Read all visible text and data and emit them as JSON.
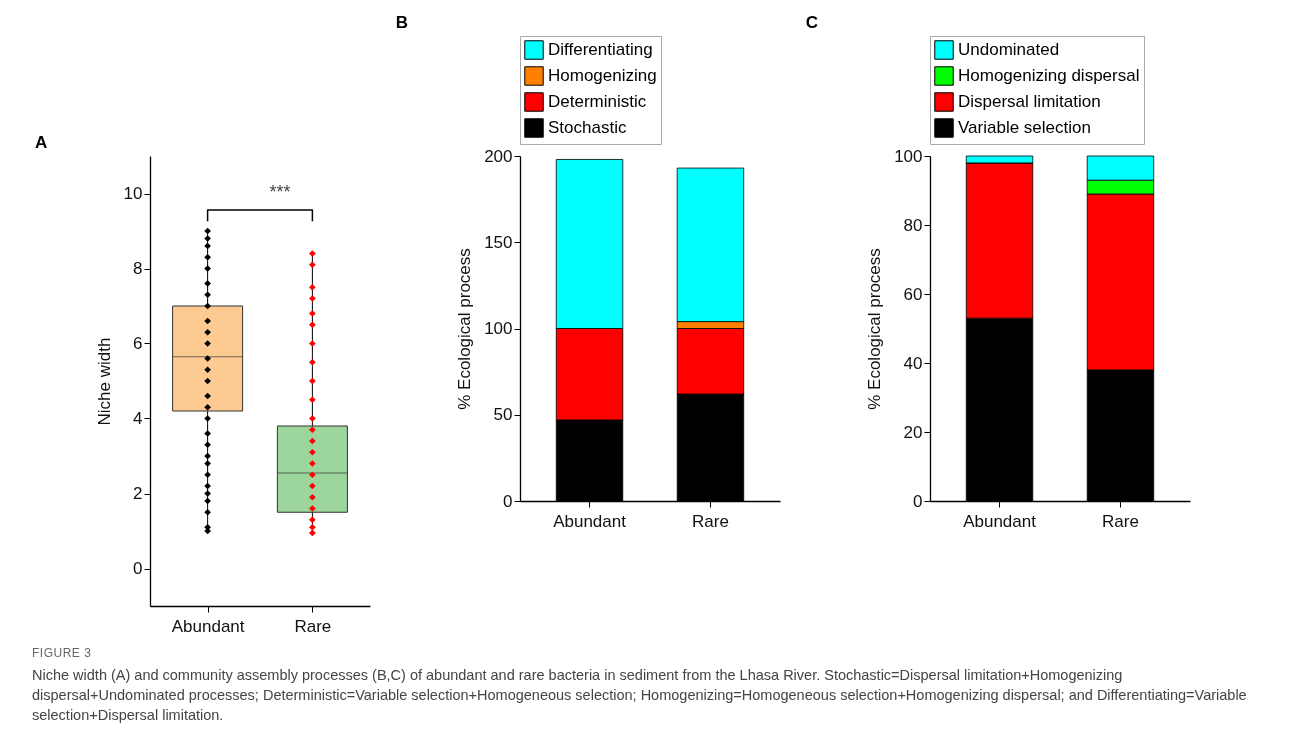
{
  "chart_data": [
    {
      "type": "box",
      "title": "A",
      "ylabel": "Niche width",
      "categories": [
        "Abundant",
        "Rare"
      ],
      "ylim": [
        -1,
        11
      ],
      "yticks": [
        0,
        2,
        4,
        6,
        8,
        10
      ],
      "marker": "diamond",
      "annotations": [
        "***"
      ],
      "series": [
        {
          "type": "box",
          "colors": [
            "#fdcb92",
            "#9dd69d"
          ],
          "boxes": [
            {
              "low": 1.0,
              "q1": 4.2,
              "median": 5.65,
              "q3": 7.0,
              "high": 9.0
            },
            {
              "low": 0.95,
              "q1": 1.5,
              "median": 2.55,
              "q3": 3.8,
              "high": 8.4
            }
          ]
        },
        {
          "type": "scatter",
          "color": "#000000",
          "x": [
            "Abundant",
            "Abundant",
            "Abundant",
            "Abundant",
            "Abundant",
            "Abundant",
            "Abundant",
            "Abundant",
            "Abundant",
            "Abundant",
            "Abundant",
            "Abundant",
            "Abundant",
            "Abundant",
            "Abundant",
            "Abundant",
            "Abundant",
            "Abundant",
            "Abundant",
            "Abundant",
            "Abundant",
            "Abundant",
            "Abundant",
            "Abundant",
            "Abundant",
            "Abundant",
            "Abundant",
            "Abundant"
          ],
          "values": [
            1.0,
            1.1,
            1.5,
            1.8,
            2.0,
            2.2,
            2.5,
            2.8,
            3.0,
            3.3,
            3.6,
            4.0,
            4.3,
            4.6,
            5.0,
            5.3,
            5.6,
            6.0,
            6.3,
            6.6,
            7.0,
            7.3,
            7.6,
            8.0,
            8.3,
            8.6,
            8.8,
            9.0
          ]
        },
        {
          "type": "scatter",
          "color": "#ff0000",
          "x": [
            "Rare",
            "Rare",
            "Rare",
            "Rare",
            "Rare",
            "Rare",
            "Rare",
            "Rare",
            "Rare",
            "Rare",
            "Rare",
            "Rare",
            "Rare",
            "Rare",
            "Rare",
            "Rare",
            "Rare",
            "Rare",
            "Rare",
            "Rare",
            "Rare",
            "Rare"
          ],
          "values": [
            0.95,
            1.1,
            1.3,
            1.6,
            1.9,
            2.2,
            2.5,
            2.8,
            3.1,
            3.4,
            3.7,
            4.0,
            4.5,
            5.0,
            5.5,
            6.0,
            6.5,
            6.8,
            7.2,
            7.5,
            8.1,
            8.4
          ]
        }
      ]
    },
    {
      "type": "bar",
      "title": "B",
      "ylabel": "% Ecological process",
      "categories": [
        "Abundant",
        "Rare"
      ],
      "stacked": true,
      "legend": "top",
      "ylim": [
        0,
        200
      ],
      "yticks": [
        0,
        50,
        100,
        150,
        200
      ],
      "series": [
        {
          "name": "Stochastic",
          "color": "#000000",
          "values": [
            47,
            62
          ]
        },
        {
          "name": "Deterministic",
          "color": "#ff0000",
          "values": [
            53,
            38
          ]
        },
        {
          "name": "Homogenizing",
          "color": "#ff8000",
          "values": [
            0,
            4
          ]
        },
        {
          "name": "Differentiating",
          "color": "#00ffff",
          "values": [
            98,
            89
          ]
        }
      ]
    },
    {
      "type": "bar",
      "title": "C",
      "ylabel": "% Ecological process",
      "categories": [
        "Abundant",
        "Rare"
      ],
      "stacked": true,
      "legend": "top",
      "ylim": [
        0,
        100
      ],
      "yticks": [
        0,
        20,
        40,
        60,
        80,
        100
      ],
      "annotations": [
        "FIGURE 3",
        "Niche width (A) and community assembly processes (B,C) of abundant and rare bacteria in sediment from the Lhasa River. Stochastic=Dispersal limitation+Homogenizing dispersal+Undominated processes; Deterministic=Variable selection+Homogeneous selection; Homogenizing=Homogeneous selection+Homogenizing dispersal; and Differentiating=Variable selection+Dispersal limitation."
      ],
      "series": [
        {
          "name": "Variable selection",
          "color": "#000000",
          "values": [
            53,
            38
          ]
        },
        {
          "name": "Dispersal limitation",
          "color": "#ff0000",
          "values": [
            45,
            51
          ]
        },
        {
          "name": "Homogenizing dispersal",
          "color": "#00ff00",
          "values": [
            0,
            4
          ]
        },
        {
          "name": "Undominated",
          "color": "#00ffff",
          "values": [
            2,
            7
          ]
        }
      ]
    }
  ]
}
